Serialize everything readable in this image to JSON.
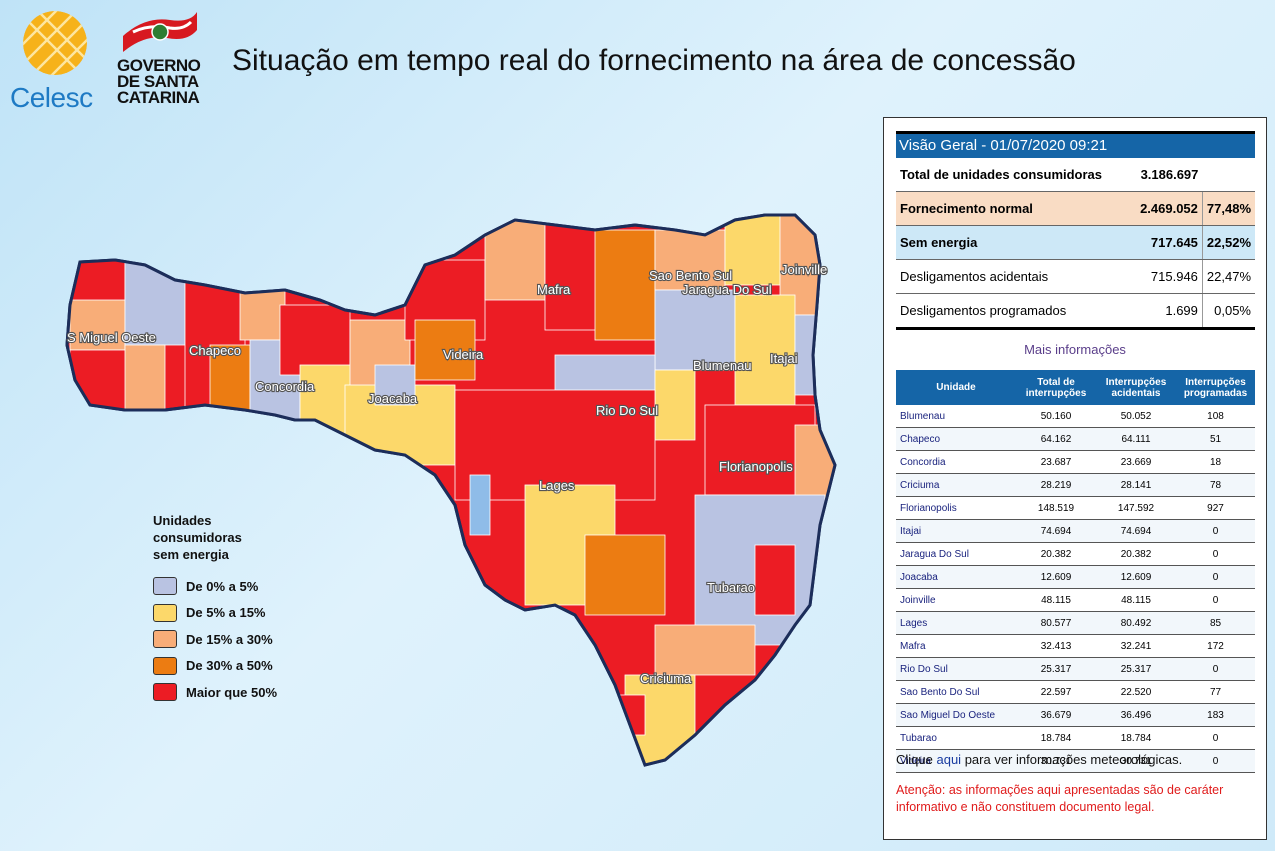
{
  "header": {
    "brand": "Celesc",
    "government_logo_text": [
      "GOVERNO",
      "DE SANTA",
      "CATARINA"
    ],
    "title": "Situação em tempo real do fornecimento na área de concessão"
  },
  "colors": {
    "level_0_5": "#b9c3e2",
    "level_5_15": "#fcd86a",
    "level_15_30": "#f8ad78",
    "level_30_50": "#ec7c12",
    "level_over_50": "#ec1c24",
    "header_blue": "#1565a7"
  },
  "map": {
    "city_labels": [
      "S Miguel Oeste",
      "Chapeco",
      "Concordia",
      "Joacaba",
      "Videira",
      "Mafra",
      "Sao Bento Sul",
      "Jaragua Do Sul",
      "Joinville",
      "Blumenau",
      "Itajai",
      "Rio Do Sul",
      "Florianopolis",
      "Lages",
      "Tubarao",
      "Criciuma"
    ]
  },
  "legend": {
    "title": [
      "Unidades",
      "consumidoras",
      "sem energia"
    ],
    "items": [
      {
        "label": "De 0% a 5%",
        "color": "#b9c3e2"
      },
      {
        "label": "De 5% a 15%",
        "color": "#fcd86a"
      },
      {
        "label": "De 15% a 30%",
        "color": "#f8ad78"
      },
      {
        "label": "De 30% a 50%",
        "color": "#ec7c12"
      },
      {
        "label": "Maior que 50%",
        "color": "#ec1c24"
      }
    ]
  },
  "overview": {
    "title": "Visão Geral - 01/07/2020 09:21",
    "total_label": "Total de unidades consumidoras",
    "total_value": "3.186.697",
    "rows": [
      {
        "label": "Fornecimento normal",
        "value": "2.469.052",
        "percent": "77,48%"
      },
      {
        "label": "Sem energia",
        "value": "717.645",
        "percent": "22,52%"
      },
      {
        "label": "Desligamentos acidentais",
        "value": "715.946",
        "percent": "22,47%"
      },
      {
        "label": "Desligamentos programados",
        "value": "1.699",
        "percent": "0,05%"
      }
    ],
    "more_info": "Mais informações"
  },
  "units_table": {
    "headers": [
      "Unidade",
      "Total de interrupções",
      "Interrupções acidentais",
      "Interrupções programadas"
    ],
    "rows": [
      [
        "Blumenau",
        "50.160",
        "50.052",
        "108"
      ],
      [
        "Chapeco",
        "64.162",
        "64.111",
        "51"
      ],
      [
        "Concordia",
        "23.687",
        "23.669",
        "18"
      ],
      [
        "Criciuma",
        "28.219",
        "28.141",
        "78"
      ],
      [
        "Florianopolis",
        "148.519",
        "147.592",
        "927"
      ],
      [
        "Itajai",
        "74.694",
        "74.694",
        "0"
      ],
      [
        "Jaragua Do Sul",
        "20.382",
        "20.382",
        "0"
      ],
      [
        "Joacaba",
        "12.609",
        "12.609",
        "0"
      ],
      [
        "Joinville",
        "48.115",
        "48.115",
        "0"
      ],
      [
        "Lages",
        "80.577",
        "80.492",
        "85"
      ],
      [
        "Mafra",
        "32.413",
        "32.241",
        "172"
      ],
      [
        "Rio Do Sul",
        "25.317",
        "25.317",
        "0"
      ],
      [
        "Sao Bento Do Sul",
        "22.597",
        "22.520",
        "77"
      ],
      [
        "Sao Miguel Do Oeste",
        "36.679",
        "36.496",
        "183"
      ],
      [
        "Tubarao",
        "18.784",
        "18.784",
        "0"
      ],
      [
        "Videira",
        "30.731",
        "30.731",
        "0"
      ]
    ]
  },
  "footer": {
    "click_prefix": "Clique",
    "click_link": "aqui",
    "click_suffix": "para ver informações meteorológicas.",
    "warning": "Atenção: as informações aqui apresentadas são de caráter informativo e não constituem documento legal."
  }
}
